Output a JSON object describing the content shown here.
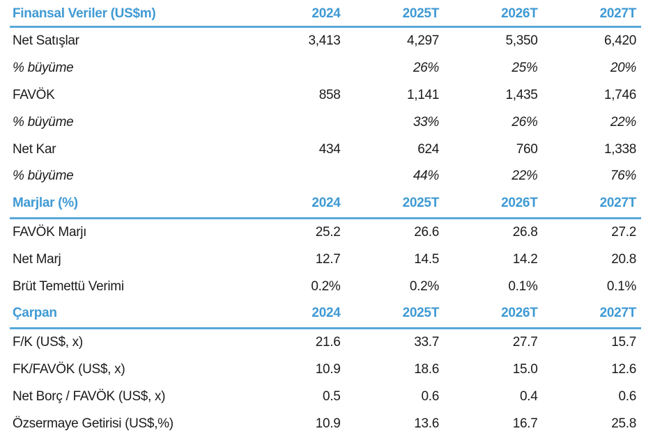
{
  "document": {
    "kind": "financial-summary-table",
    "language": "Turkish",
    "colors": {
      "header_text_blue": "#3f9ad4",
      "rule_blue": "#57a8da",
      "body_text": "#1b1b1b",
      "background": "#ffffff"
    }
  },
  "sections": [
    {
      "title": "Finansal Veriler (US$m)",
      "columns": [
        "2024",
        "2025T",
        "2026T",
        "2027T"
      ],
      "rows": [
        {
          "label": "Net Satışlar",
          "values": [
            "3,413",
            "4,297",
            "5,350",
            "6,420"
          ]
        },
        {
          "label": "% büyüme",
          "values": [
            "",
            "26%",
            "25%",
            "20%"
          ]
        },
        {
          "label": "FAVÖK",
          "values": [
            "858",
            "1,141",
            "1,435",
            "1,746"
          ]
        },
        {
          "label": "% büyüme",
          "values": [
            "",
            "33%",
            "26%",
            "22%"
          ]
        },
        {
          "label": "Net Kar",
          "values": [
            "434",
            "624",
            "760",
            "1,338"
          ]
        },
        {
          "label": "% büyüme",
          "values": [
            "",
            "44%",
            "22%",
            "76%"
          ]
        }
      ]
    },
    {
      "title": "Marjlar (%)",
      "columns": [
        "2024",
        "2025T",
        "2026T",
        "2027T"
      ],
      "rows": [
        {
          "label": "FAVÖK Marjı",
          "values": [
            "25.2",
            "26.6",
            "26.8",
            "27.2"
          ]
        },
        {
          "label": "Net Marj",
          "values": [
            "12.7",
            "14.5",
            "14.2",
            "20.8"
          ]
        },
        {
          "label": "Brüt Temettü Verimi",
          "values": [
            "0.2%",
            "0.2%",
            "0.1%",
            "0.1%"
          ]
        }
      ]
    },
    {
      "title": "Çarpan",
      "columns": [
        "2024",
        "2025T",
        "2026T",
        "2027T"
      ],
      "rows": [
        {
          "label": "F/K (US$, x)",
          "values": [
            "21.6",
            "33.7",
            "27.7",
            "15.7"
          ]
        },
        {
          "label": "FK/FAVÖK (US$, x)",
          "values": [
            "10.9",
            "18.6",
            "15.0",
            "12.6"
          ]
        },
        {
          "label": "Net Borç / FAVÖK (US$, x)",
          "values": [
            "0.5",
            "0.6",
            "0.4",
            "0.6"
          ]
        },
        {
          "label": "Özsermaye Getirisi (US$,%)",
          "values": [
            "10.9",
            "13.6",
            "16.7",
            "25.8"
          ]
        }
      ]
    }
  ]
}
